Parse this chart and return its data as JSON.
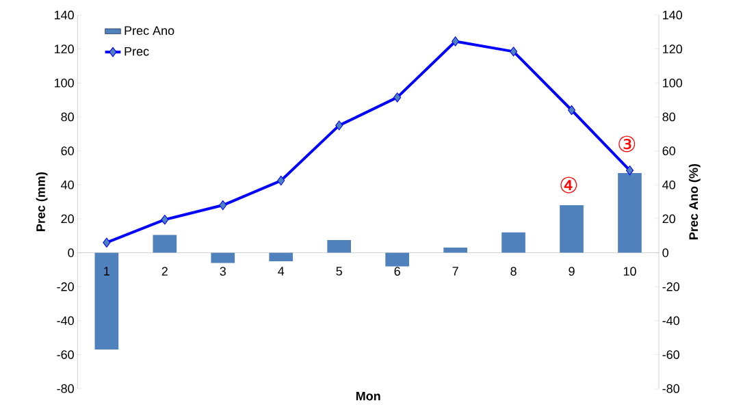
{
  "chart_data": {
    "type": "bar",
    "xlabel": "Mon",
    "ylabel": "Prec (mm)",
    "y2label": "Prec Ano (%)",
    "categories": [
      "1",
      "2",
      "3",
      "4",
      "5",
      "6",
      "7",
      "8",
      "9",
      "10"
    ],
    "series": [
      {
        "name": "Prec Ano",
        "axis": "y2",
        "color": "#4f81bd",
        "values": [
          -57,
          10.5,
          -6,
          -5,
          7.5,
          -8,
          3,
          12,
          28,
          47
        ]
      },
      {
        "name": "Prec",
        "type": "line",
        "color": "#0000ff",
        "marker": "diamond",
        "values": [
          6,
          19.5,
          28,
          42.5,
          75,
          91.5,
          124.5,
          118.5,
          84,
          48.5
        ]
      }
    ],
    "ylim": [
      -80,
      140
    ],
    "yticks": [
      -80,
      -60,
      -40,
      -20,
      0,
      20,
      40,
      60,
      80,
      100,
      120,
      140
    ],
    "y2lim": [
      -80,
      140
    ],
    "y2ticks": [
      -80,
      -60,
      -40,
      -20,
      0,
      20,
      40,
      60,
      80,
      100,
      120,
      140
    ],
    "legend": "top left",
    "annotations": [
      "③",
      "④"
    ]
  }
}
